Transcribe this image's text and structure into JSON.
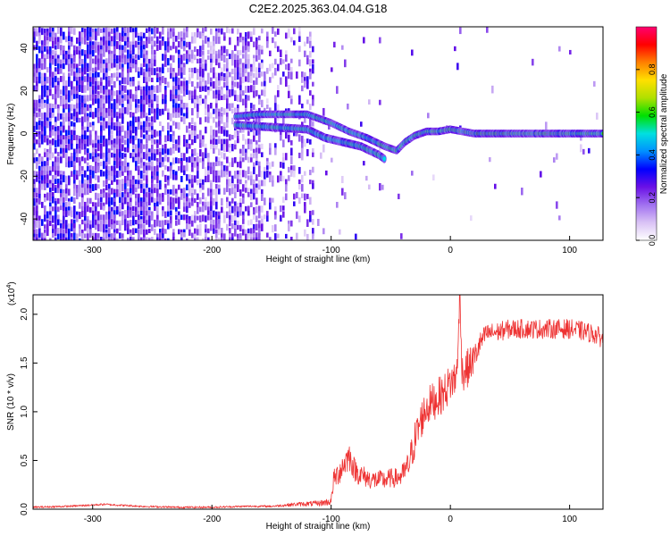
{
  "title": "C2E2.2025.363.04.04.G18",
  "chart_data": [
    {
      "type": "heatmap",
      "title": "C2E2.2025.363.04.04.G18",
      "xlabel": "Height of straight line (km)",
      "ylabel": "Frequency (Hz)",
      "xlim": [
        -350,
        128
      ],
      "ylim": [
        -50,
        50
      ],
      "xticks": [
        -300,
        -200,
        -100,
        0,
        100
      ],
      "yticks": [
        -40,
        -20,
        0,
        20,
        40
      ],
      "colorbar": {
        "label": "Normalized spectral amplitude",
        "range": [
          0,
          1
        ],
        "ticks": [
          "0.0",
          "0.2",
          "0.4",
          "0.6",
          "0.8"
        ],
        "colors": [
          "#ffffff",
          "#d9c2f5",
          "#a070f0",
          "#6a10e6",
          "#0000ff",
          "#0090ff",
          "#00e0e0",
          "#00e000",
          "#b0e000",
          "#ffe000",
          "#ff8000",
          "#ff0000",
          "#ff0070"
        ]
      },
      "signal_track": [
        {
          "x": -180,
          "f": 8
        },
        {
          "x": -160,
          "f": 9
        },
        {
          "x": -140,
          "f": 9
        },
        {
          "x": -120,
          "f": 9
        },
        {
          "x": -100,
          "f": 5
        },
        {
          "x": -85,
          "f": 1
        },
        {
          "x": -70,
          "f": -2
        },
        {
          "x": -55,
          "f": -6
        },
        {
          "x": -45,
          "f": -8
        },
        {
          "x": -38,
          "f": -4
        },
        {
          "x": -30,
          "f": -1
        },
        {
          "x": -20,
          "f": 1
        },
        {
          "x": -10,
          "f": 1
        },
        {
          "x": 0,
          "f": 2
        },
        {
          "x": 20,
          "f": 0
        },
        {
          "x": 60,
          "f": 0
        },
        {
          "x": 100,
          "f": 0
        },
        {
          "x": 128,
          "f": 0
        }
      ],
      "lower_branch": [
        {
          "x": -180,
          "f": 4
        },
        {
          "x": -150,
          "f": 3
        },
        {
          "x": -120,
          "f": 2
        },
        {
          "x": -105,
          "f": -2
        },
        {
          "x": -90,
          "f": -4
        },
        {
          "x": -75,
          "f": -6
        },
        {
          "x": -60,
          "f": -10
        },
        {
          "x": -55,
          "f": -12
        }
      ]
    },
    {
      "type": "line",
      "xlabel": "Height of straight line (km)",
      "ylabel": "SNR (10 * v/v)",
      "scale_label": "(x10",
      "scale_exp": "4",
      "scale_close": ")",
      "xlim": [
        -350,
        128
      ],
      "ylim": [
        0,
        2.2
      ],
      "xticks": [
        -300,
        -200,
        -100,
        0,
        100
      ],
      "yticks": [
        "0.0",
        "0.5",
        "1.0",
        "1.5",
        "2.0"
      ],
      "color": "#ee3333",
      "series": [
        {
          "name": "SNR",
          "x": [
            -350,
            -320,
            -290,
            -260,
            -230,
            -200,
            -170,
            -150,
            -130,
            -110,
            -100,
            -98,
            -95,
            -90,
            -85,
            -80,
            -75,
            -70,
            -65,
            -60,
            -55,
            -50,
            -45,
            -40,
            -35,
            -30,
            -25,
            -20,
            -15,
            -10,
            -5,
            0,
            5,
            8,
            10,
            15,
            20,
            25,
            30,
            40,
            50,
            60,
            70,
            80,
            90,
            100,
            110,
            120,
            128
          ],
          "y": [
            0.02,
            0.03,
            0.05,
            0.03,
            0.02,
            0.02,
            0.03,
            0.03,
            0.05,
            0.06,
            0.08,
            0.3,
            0.35,
            0.45,
            0.55,
            0.4,
            0.35,
            0.32,
            0.3,
            0.3,
            0.3,
            0.32,
            0.32,
            0.35,
            0.45,
            0.7,
            0.9,
            1.05,
            1.1,
            1.15,
            1.2,
            1.3,
            1.35,
            2.1,
            1.4,
            1.45,
            1.55,
            1.7,
            1.8,
            1.82,
            1.85,
            1.85,
            1.85,
            1.85,
            1.85,
            1.85,
            1.83,
            1.8,
            1.75
          ],
          "noise": [
            0.01,
            0.01,
            0.01,
            0.01,
            0.01,
            0.01,
            0.01,
            0.01,
            0.02,
            0.03,
            0.04,
            0.1,
            0.12,
            0.15,
            0.15,
            0.12,
            0.12,
            0.1,
            0.1,
            0.1,
            0.1,
            0.1,
            0.1,
            0.12,
            0.15,
            0.2,
            0.2,
            0.2,
            0.2,
            0.2,
            0.2,
            0.2,
            0.2,
            0.1,
            0.2,
            0.2,
            0.15,
            0.12,
            0.1,
            0.1,
            0.1,
            0.1,
            0.1,
            0.1,
            0.1,
            0.1,
            0.1,
            0.1,
            0.1
          ]
        }
      ]
    }
  ]
}
